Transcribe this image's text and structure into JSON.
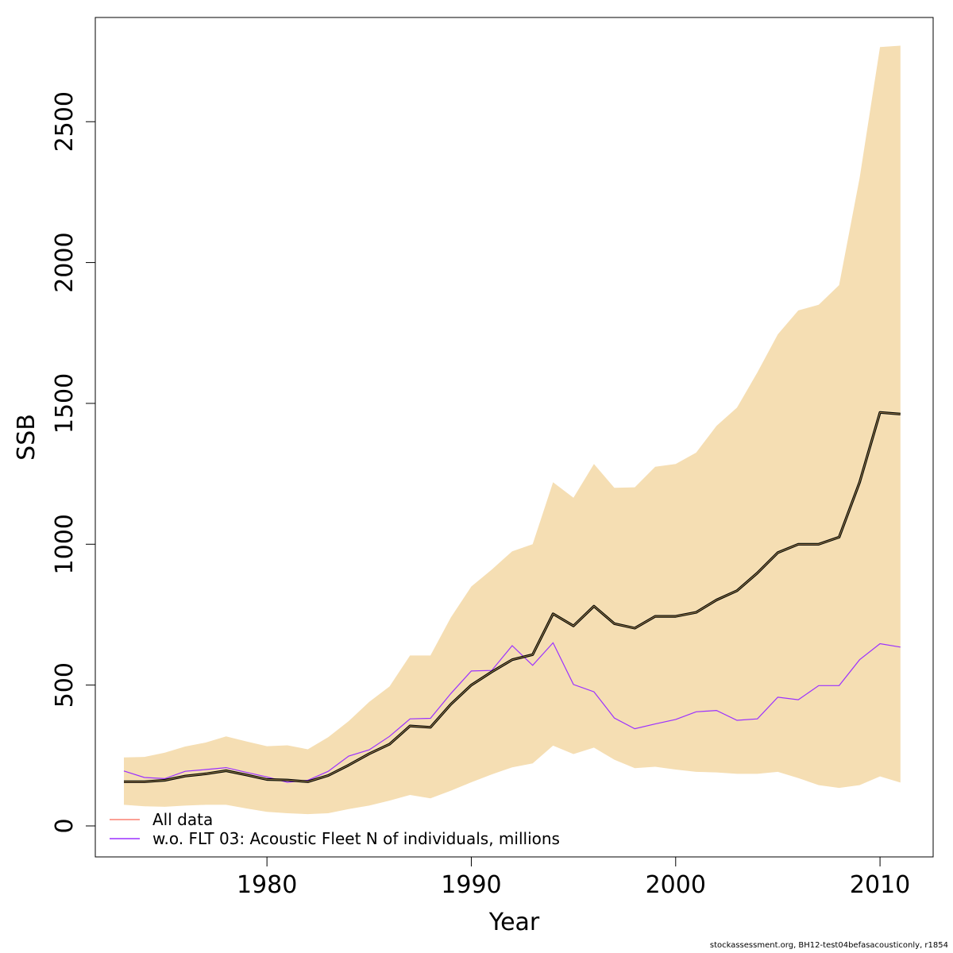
{
  "chart_data": {
    "type": "line",
    "xlabel": "Year",
    "ylabel": "SSB",
    "xlim": [
      1971.6,
      2012.6
    ],
    "ylim": [
      -110,
      2870
    ],
    "x_ticks": [
      1980,
      1990,
      2000,
      2010
    ],
    "y_ticks": [
      0,
      500,
      1000,
      1500,
      2000,
      2500
    ],
    "grid": false,
    "legend_position": "bottom-left",
    "x": [
      1973,
      1974,
      1975,
      1976,
      1977,
      1978,
      1979,
      1980,
      1981,
      1982,
      1983,
      1984,
      1985,
      1986,
      1987,
      1988,
      1989,
      1990,
      1991,
      1992,
      1993,
      1994,
      1995,
      1996,
      1997,
      1998,
      1999,
      2000,
      2001,
      2002,
      2003,
      2004,
      2005,
      2006,
      2007,
      2008,
      2009,
      2010,
      2011
    ],
    "band": {
      "color": "#f5deb3",
      "lower": [
        75,
        70,
        68,
        72,
        75,
        75,
        62,
        50,
        45,
        42,
        45,
        60,
        72,
        90,
        110,
        98,
        125,
        155,
        183,
        208,
        222,
        285,
        255,
        278,
        235,
        205,
        210,
        200,
        192,
        190,
        185,
        185,
        192,
        170,
        145,
        135,
        145,
        176,
        154
      ],
      "upper": [
        243,
        245,
        260,
        282,
        296,
        318,
        300,
        283,
        286,
        272,
        315,
        372,
        440,
        495,
        605,
        605,
        740,
        850,
        910,
        975,
        1000,
        1220,
        1165,
        1285,
        1200,
        1202,
        1275,
        1285,
        1325,
        1420,
        1485,
        1610,
        1745,
        1830,
        1850,
        1920,
        2300,
        2765,
        2770
      ]
    },
    "series": [
      {
        "name": "All data",
        "color": "#fa8072",
        "values": [
          157,
          157,
          162,
          177,
          185,
          196,
          181,
          165,
          163,
          157,
          179,
          216,
          256,
          290,
          355,
          350,
          432,
          500,
          547,
          590,
          608,
          753,
          710,
          780,
          718,
          702,
          744,
          744,
          758,
          802,
          835,
          898,
          970,
          1000,
          1000,
          1025,
          1220,
          1468,
          1462
        ]
      },
      {
        "name": "w.o. FLT 03: Acoustic Fleet  N of individuals, millions",
        "color": "#9b30ff",
        "values": [
          195,
          172,
          168,
          194,
          200,
          207,
          190,
          174,
          155,
          162,
          194,
          248,
          270,
          318,
          380,
          382,
          470,
          550,
          552,
          640,
          570,
          650,
          502,
          476,
          383,
          345,
          362,
          378,
          405,
          410,
          375,
          380,
          457,
          448,
          498,
          498,
          590,
          647,
          635
        ]
      }
    ],
    "center_line": {
      "values": [
        157,
        157,
        162,
        177,
        185,
        196,
        181,
        165,
        163,
        157,
        179,
        216,
        256,
        290,
        355,
        350,
        432,
        500,
        547,
        590,
        608,
        753,
        710,
        780,
        718,
        702,
        744,
        744,
        758,
        802,
        835,
        898,
        970,
        1000,
        1000,
        1025,
        1220,
        1468,
        1462
      ]
    }
  },
  "footer_note": "stockassessment.org, BH12-test04befasacousticonly, r1854"
}
